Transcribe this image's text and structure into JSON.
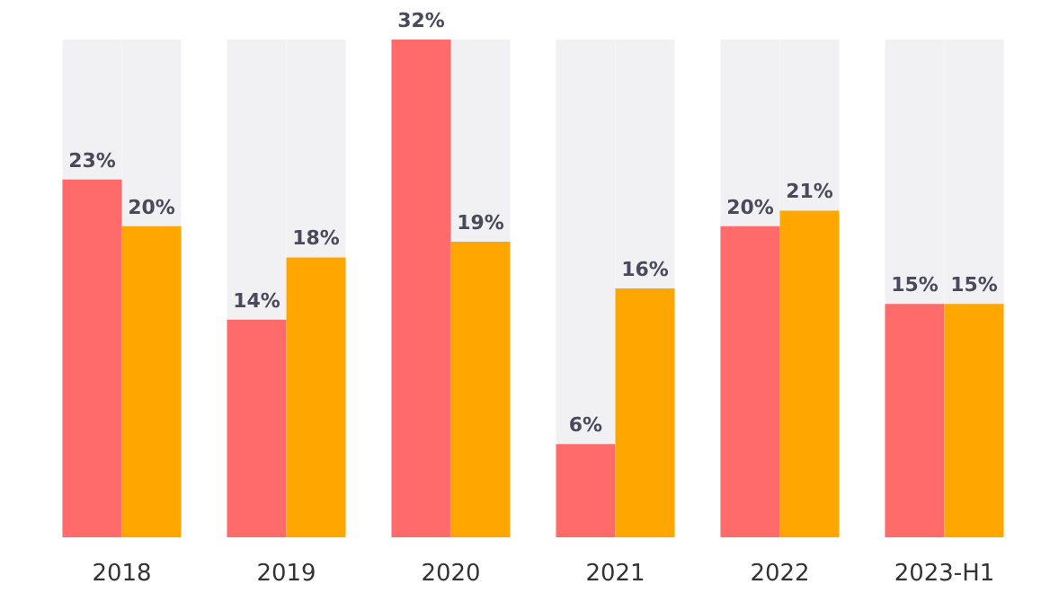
{
  "chart_data": {
    "type": "bar",
    "categories": [
      "2018",
      "2019",
      "2020",
      "2021",
      "2022",
      "2023-H1"
    ],
    "series": [
      {
        "color": "#ff6b6b",
        "values": [
          23,
          14,
          32,
          6,
          20,
          15
        ],
        "value_labels": [
          "23%",
          "14%",
          "32%",
          "6%",
          "20%",
          "15%"
        ]
      },
      {
        "color": "#ffa600",
        "values": [
          20,
          18,
          19,
          16,
          21,
          15
        ],
        "value_labels": [
          "20%",
          "18%",
          "19%",
          "16%",
          "21%",
          "15%"
        ]
      }
    ]
  }
}
